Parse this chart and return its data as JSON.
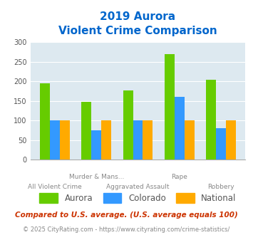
{
  "title_line1": "2019 Aurora",
  "title_line2": "Violent Crime Comparison",
  "top_labels": [
    "",
    "Murder & Mans...",
    "",
    "Rape",
    ""
  ],
  "bottom_labels": [
    "All Violent Crime",
    "",
    "Aggravated Assault",
    "",
    "Robbery"
  ],
  "aurora": [
    195,
    148,
    178,
    270,
    205
  ],
  "colorado": [
    100,
    75,
    100,
    160,
    80
  ],
  "national": [
    100,
    100,
    100,
    100,
    100
  ],
  "aurora_color": "#66cc00",
  "colorado_color": "#3399ff",
  "national_color": "#ffaa00",
  "bg_color": "#dde9f0",
  "ylim": [
    0,
    300
  ],
  "yticks": [
    0,
    50,
    100,
    150,
    200,
    250,
    300
  ],
  "footnote1": "Compared to U.S. average. (U.S. average equals 100)",
  "footnote2": "© 2025 CityRating.com - https://www.cityrating.com/crime-statistics/",
  "title_color": "#0066cc",
  "footnote1_color": "#cc3300",
  "footnote2_color": "#888888",
  "legend_labels": [
    "Aurora",
    "Colorado",
    "National"
  ],
  "legend_color": "#555555"
}
